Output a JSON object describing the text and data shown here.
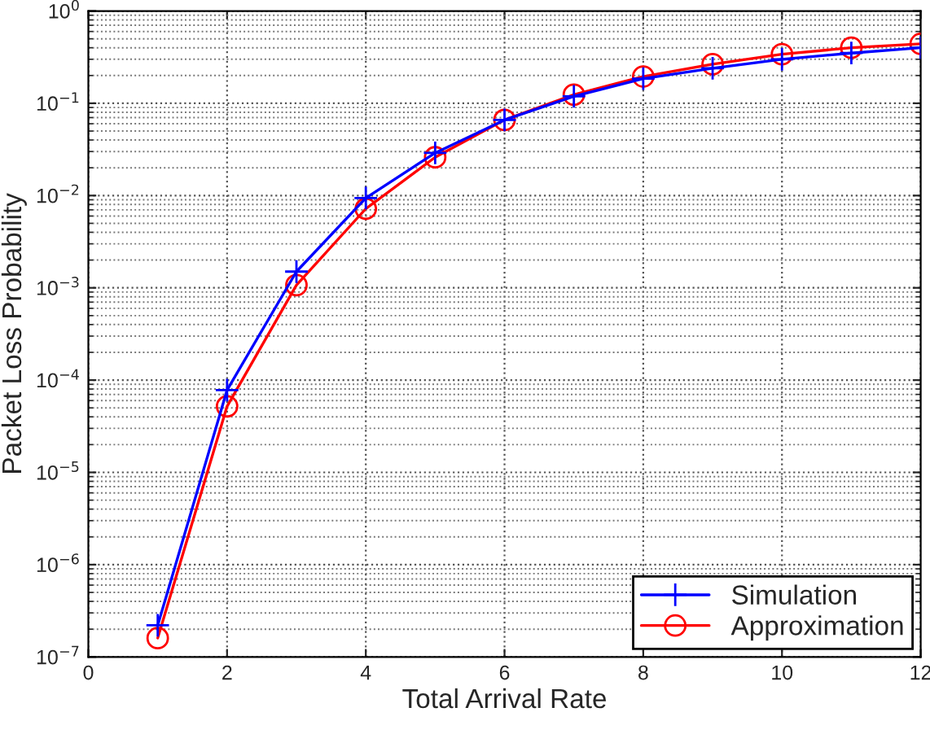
{
  "chart_data": {
    "type": "line",
    "xlabel": "Total Arrival Rate",
    "ylabel": "Packet Loss Probability",
    "x": [
      1,
      2,
      3,
      4,
      5,
      6,
      7,
      8,
      9,
      10,
      11,
      12
    ],
    "series": [
      {
        "name": "Simulation",
        "color": "#0000ff",
        "marker": "cross",
        "values": [
          2.2e-07,
          7.8e-05,
          0.0015,
          0.0094,
          0.029,
          0.066,
          0.119,
          0.185,
          0.24,
          0.3,
          0.35,
          0.4
        ]
      },
      {
        "name": "Approximation",
        "color": "#ff0000",
        "marker": "circle",
        "values": [
          1.6e-07,
          5.2e-05,
          0.00107,
          0.0072,
          0.026,
          0.066,
          0.124,
          0.195,
          0.265,
          0.34,
          0.4,
          0.44
        ]
      }
    ],
    "log": "y",
    "line_style": "solid",
    "xlim": [
      0,
      12
    ],
    "xticks": [
      0,
      2,
      4,
      6,
      8,
      10,
      12
    ],
    "ylim": [
      1e-07,
      1
    ],
    "yticks": [
      {
        "value": 1e-07,
        "label": "10$^{−7}$"
      },
      {
        "value": 1e-06,
        "label": "10$^{−6}$"
      },
      {
        "value": 1e-05,
        "label": "10$^{−5}$"
      },
      {
        "value": 0.0001,
        "label": "10$^{−4}$"
      },
      {
        "value": 0.001,
        "label": "10$^{−3}$"
      },
      {
        "value": 0.01,
        "label": "10$^{−2}$"
      },
      {
        "value": 0.1,
        "label": "10$^{−1}$"
      },
      {
        "value": 1,
        "label": "10$^{0}$"
      }
    ],
    "grid": true,
    "legend": "bottom right"
  }
}
